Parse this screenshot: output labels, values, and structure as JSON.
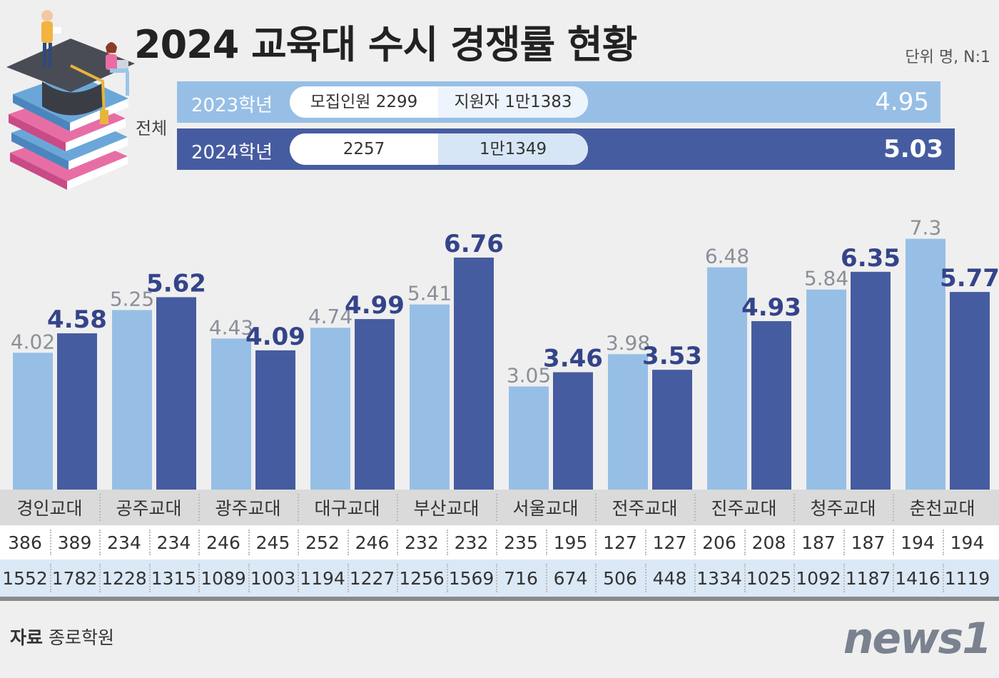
{
  "title": "2024 교육대 수시 경쟁률 현황",
  "unit": "단위 명, N:1",
  "total": {
    "label": "전체",
    "rows": [
      {
        "year": "2023학년",
        "recruit": "모집인원 2299",
        "applicants": "지원자 1만1383",
        "ratio": "4.95"
      },
      {
        "year": "2024학년",
        "recruit": "2257",
        "applicants": "1만1349",
        "ratio": "5.03"
      }
    ]
  },
  "colors": {
    "y2023": "#97bfe6",
    "y2024": "#465ca0",
    "label2023": "#8a8f99",
    "label2024": "#34448a"
  },
  "chart_data": {
    "type": "bar",
    "categories": [
      "경인교대",
      "공주교대",
      "광주교대",
      "대구교대",
      "부산교대",
      "서울교대",
      "전주교대",
      "진주교대",
      "청주교대",
      "춘천교대"
    ],
    "series": [
      {
        "name": "2023학년",
        "values": [
          4.02,
          5.25,
          4.43,
          4.74,
          5.41,
          3.05,
          3.98,
          6.48,
          5.84,
          7.3
        ]
      },
      {
        "name": "2024학년",
        "values": [
          4.58,
          5.62,
          4.09,
          4.99,
          6.76,
          3.46,
          3.53,
          4.93,
          6.35,
          5.77
        ]
      }
    ],
    "value_labels": {
      "y2023": [
        "4.02",
        "5.25",
        "4.43",
        "4.74",
        "5.41",
        "3.05",
        "3.98",
        "6.48",
        "5.84",
        "7.3"
      ],
      "y2024": [
        "4.58",
        "5.62",
        "4.09",
        "4.99",
        "6.76",
        "3.46",
        "3.53",
        "4.93",
        "6.35",
        "5.77"
      ]
    },
    "ylim": [
      0,
      7.6
    ],
    "grid": false
  },
  "table": {
    "recruit": [
      [
        "386",
        "389"
      ],
      [
        "234",
        "234"
      ],
      [
        "246",
        "245"
      ],
      [
        "252",
        "246"
      ],
      [
        "232",
        "232"
      ],
      [
        "235",
        "195"
      ],
      [
        "127",
        "127"
      ],
      [
        "206",
        "208"
      ],
      [
        "187",
        "187"
      ],
      [
        "194",
        "194"
      ]
    ],
    "applicants": [
      [
        "1552",
        "1782"
      ],
      [
        "1228",
        "1315"
      ],
      [
        "1089",
        "1003"
      ],
      [
        "1194",
        "1227"
      ],
      [
        "1256",
        "1569"
      ],
      [
        "716",
        "674"
      ],
      [
        "506",
        "448"
      ],
      [
        "1334",
        "1025"
      ],
      [
        "1092",
        "1187"
      ],
      [
        "1416",
        "1119"
      ]
    ]
  },
  "source": {
    "label": "자료",
    "text": "종로학원"
  },
  "logo": "news1"
}
